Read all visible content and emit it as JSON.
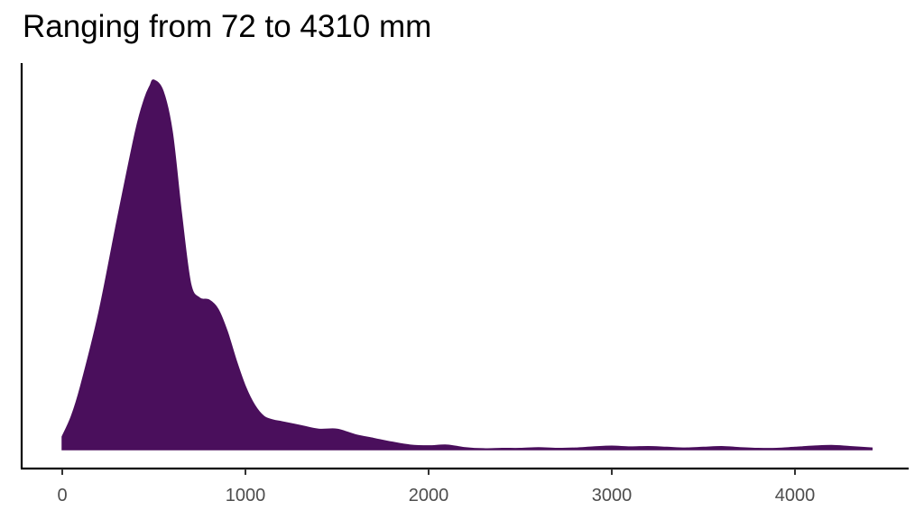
{
  "chart_data": {
    "type": "area",
    "subtype": "density",
    "title": "Ranging from 72 to 4310 mm",
    "xlabel": "",
    "ylabel": "",
    "xlim": [
      -200,
      4600
    ],
    "x_ticks": [
      0,
      1000,
      2000,
      3000,
      4000
    ],
    "x_tick_labels": [
      "0",
      "1000",
      "2000",
      "3000",
      "4000"
    ],
    "y_ticks": [],
    "grid": false,
    "legend": null,
    "fill_color": "#4a0f5c",
    "x": [
      0,
      50,
      100,
      200,
      300,
      400,
      450,
      480,
      500,
      550,
      600,
      650,
      700,
      750,
      800,
      850,
      900,
      950,
      1000,
      1050,
      1100,
      1150,
      1200,
      1300,
      1400,
      1500,
      1600,
      1700,
      1800,
      1900,
      2000,
      2100,
      2200,
      2300,
      2400,
      2500,
      2600,
      2700,
      2800,
      2900,
      3000,
      3100,
      3200,
      3300,
      3400,
      3500,
      3600,
      3700,
      3800,
      3900,
      4000,
      4100,
      4200,
      4300,
      4420
    ],
    "density": [
      0.035,
      0.09,
      0.17,
      0.37,
      0.62,
      0.86,
      0.95,
      0.985,
      1.0,
      0.97,
      0.86,
      0.64,
      0.45,
      0.41,
      0.405,
      0.38,
      0.32,
      0.24,
      0.17,
      0.12,
      0.09,
      0.08,
      0.075,
      0.065,
      0.055,
      0.055,
      0.04,
      0.03,
      0.02,
      0.012,
      0.01,
      0.012,
      0.005,
      0.002,
      0.003,
      0.003,
      0.005,
      0.003,
      0.004,
      0.007,
      0.009,
      0.007,
      0.008,
      0.006,
      0.004,
      0.006,
      0.008,
      0.005,
      0.003,
      0.003,
      0.006,
      0.009,
      0.011,
      0.008,
      0.004
    ]
  },
  "colors": {
    "fill": "#4a0f5c",
    "axis": "#000000",
    "tick_label": "#4d4d4d"
  }
}
